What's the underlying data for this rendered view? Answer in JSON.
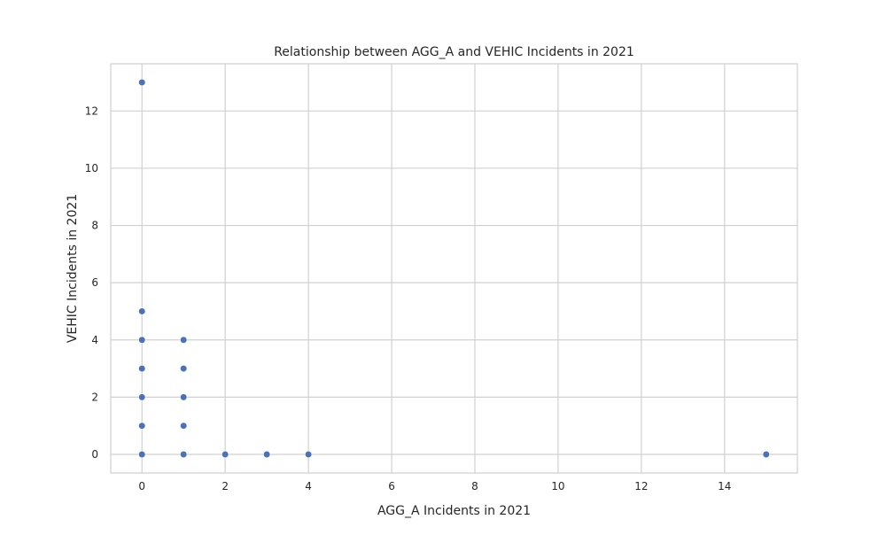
{
  "chart_data": {
    "type": "scatter",
    "title": "Relationship between AGG_A and VEHIC Incidents in 2021",
    "xlabel": "AGG_A Incidents in 2021",
    "ylabel": "VEHIC Incidents in 2021",
    "xlim": [
      -0.75,
      15.75
    ],
    "ylim": [
      -0.65,
      13.65
    ],
    "xticks": [
      0,
      2,
      4,
      6,
      8,
      10,
      12,
      14
    ],
    "yticks": [
      0,
      2,
      4,
      6,
      8,
      10,
      12
    ],
    "grid": true,
    "point_color": "#4c72b0",
    "grid_color": "#d0d0d0",
    "frame_color": "#cfcfcf",
    "points": [
      {
        "x": 0,
        "y": 13
      },
      {
        "x": 0,
        "y": 5
      },
      {
        "x": 0,
        "y": 4
      },
      {
        "x": 0,
        "y": 3
      },
      {
        "x": 0,
        "y": 2
      },
      {
        "x": 0,
        "y": 1
      },
      {
        "x": 0,
        "y": 0
      },
      {
        "x": 1,
        "y": 4
      },
      {
        "x": 1,
        "y": 3
      },
      {
        "x": 1,
        "y": 2
      },
      {
        "x": 1,
        "y": 1
      },
      {
        "x": 1,
        "y": 0
      },
      {
        "x": 2,
        "y": 0
      },
      {
        "x": 3,
        "y": 0
      },
      {
        "x": 4,
        "y": 0
      },
      {
        "x": 15,
        "y": 0
      }
    ]
  }
}
